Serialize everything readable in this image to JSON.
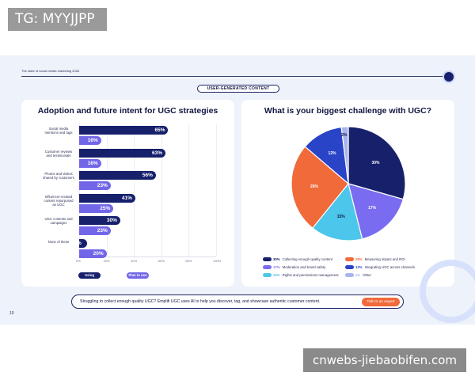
{
  "overlay_tag": "TG: MYYJJPP",
  "watermark": "cnwebs-jiebaobifen.com",
  "slide": {
    "subtitle": "The state of social media marketing 2026",
    "section_label": "USER-GENERATED CONTENT",
    "page_number": "10"
  },
  "cta": {
    "text": "Struggling to collect enough quality UGC? Emplifi UGC uses AI to help you discover, tag, and showcase authentic customer content.",
    "button_label": "Talk to an expert"
  },
  "colors": {
    "navy": "#16206b",
    "purple": "#7266e8",
    "orange": "#f06a3a",
    "blue": "#2a44c8",
    "cyan": "#4cc6ea",
    "lavender": "#a9b4ea",
    "violet": "#7a6cf0"
  },
  "chart_data": [
    {
      "type": "bar",
      "orientation": "horizontal",
      "title": "Adoption and future intent for UGC strategies",
      "categories": [
        "Social media mentions and tags",
        "Customer reviews and testimonials",
        "Photos and videos shared by customers",
        "Influencer-created content repurposed as UGC",
        "UGC contests and campaigns",
        "None of these"
      ],
      "series": [
        {
          "name": "Using",
          "values": [
            65,
            63,
            56,
            41,
            30,
            6
          ],
          "labels": [
            "65%",
            "63%",
            "56%",
            "41%",
            "30%",
            "6%"
          ]
        },
        {
          "name": "Plan to use",
          "values": [
            16,
            16,
            23,
            25,
            23,
            20
          ],
          "labels": [
            "16%",
            "16%",
            "23%",
            "25%",
            "23%",
            "20%"
          ]
        }
      ],
      "xlim": [
        0,
        100
      ],
      "xticks": [
        "0%",
        "20%",
        "40%",
        "60%",
        "80%",
        "100%"
      ],
      "grid": true,
      "legend_position": "bottom-left"
    },
    {
      "type": "pie",
      "title": "What is your biggest challenge with UGC?",
      "slices": [
        {
          "label": "Collecting enough quality content",
          "value": 30,
          "pct": "30%",
          "color_key": "navy"
        },
        {
          "label": "Moderation and brand safety",
          "value": 17,
          "pct": "17%",
          "color_key": "violet"
        },
        {
          "label": "Rights and permissions management",
          "value": 15,
          "pct": "15%",
          "color_key": "cyan"
        },
        {
          "label": "Measuring impact and ROI",
          "value": 26,
          "pct": "26%",
          "color_key": "orange"
        },
        {
          "label": "Integrating UGC across channels",
          "value": 12,
          "pct": "12%",
          "color_key": "blue"
        },
        {
          "label": "Other",
          "value": 2,
          "pct": "2%",
          "color_key": "lavender"
        }
      ],
      "legend_position": "bottom"
    }
  ]
}
